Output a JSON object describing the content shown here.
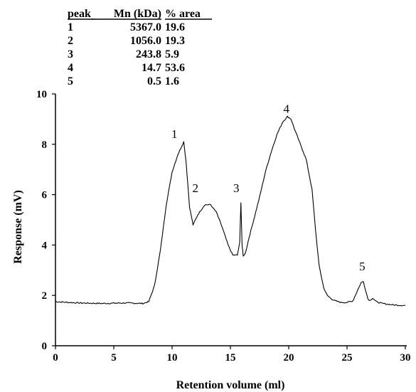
{
  "chart_data": {
    "type": "line",
    "xlabel": "Retention volume (ml)",
    "ylabel": "Response (mV)",
    "xlim": [
      0,
      30
    ],
    "ylim": [
      0,
      10
    ],
    "x_ticks": [
      "0",
      "5",
      "10",
      "15",
      "20",
      "25",
      "30"
    ],
    "y_ticks": [
      "0",
      "2",
      "4",
      "6",
      "8",
      "10"
    ],
    "grid": false,
    "legend": "none",
    "line_color": "#000000",
    "series": [
      {
        "x": [
          0,
          2,
          4,
          6,
          7.5,
          8,
          8.5,
          9,
          9.5,
          10,
          10.5,
          10.8,
          11.0,
          11.2,
          11.5,
          11.8,
          12.2,
          12.8,
          13.3,
          13.8,
          14.3,
          14.8,
          15.2,
          15.6,
          15.8,
          15.9,
          16.0,
          16.1,
          16.3,
          16.6,
          17.0,
          17.5,
          18.0,
          18.5,
          19.0,
          19.5,
          19.9,
          20.2,
          20.5,
          21.0,
          21.5,
          22.0,
          22.3,
          22.6,
          23.0,
          23.3,
          23.7,
          24.0,
          24.5,
          25.0,
          25.5,
          26.0,
          26.2,
          26.4,
          26.6,
          26.8,
          27.0,
          27.2,
          27.5,
          28.0,
          29.0,
          30.0
        ],
        "y": [
          1.75,
          1.7,
          1.68,
          1.7,
          1.68,
          1.75,
          2.4,
          3.8,
          5.6,
          6.9,
          7.6,
          7.9,
          8.1,
          7.3,
          5.5,
          4.8,
          5.2,
          5.6,
          5.6,
          5.3,
          4.7,
          4.0,
          3.6,
          3.6,
          4.1,
          5.7,
          4.0,
          3.55,
          3.7,
          4.3,
          5.0,
          5.9,
          6.9,
          7.7,
          8.4,
          8.9,
          9.1,
          9.0,
          8.6,
          8.0,
          7.4,
          6.2,
          4.6,
          3.2,
          2.3,
          2.0,
          1.85,
          1.78,
          1.72,
          1.72,
          1.78,
          2.3,
          2.5,
          2.55,
          2.2,
          1.85,
          1.8,
          1.9,
          1.75,
          1.68,
          1.62,
          1.6
        ]
      }
    ],
    "annotations": [
      {
        "text": "1",
        "x": 10.2,
        "y": 8.25
      },
      {
        "text": "2",
        "x": 12.0,
        "y": 6.1
      },
      {
        "text": "3",
        "x": 15.5,
        "y": 6.1
      },
      {
        "text": "4",
        "x": 19.8,
        "y": 9.25
      },
      {
        "text": "5",
        "x": 26.3,
        "y": 3.0
      }
    ],
    "table": {
      "headers": [
        "peak",
        "Mn (kDa)",
        "% area"
      ],
      "rows": [
        [
          "1",
          "5367.0",
          "19.6"
        ],
        [
          "2",
          "1056.0",
          "19.3"
        ],
        [
          "3",
          "243.8",
          "5.9"
        ],
        [
          "4",
          "14.7",
          "53.6"
        ],
        [
          "5",
          "0.5",
          "1.6"
        ]
      ]
    }
  }
}
